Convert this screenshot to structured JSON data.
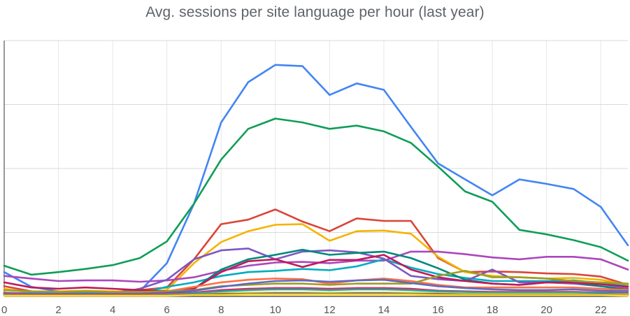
{
  "chart_data": {
    "type": "line",
    "title": "Avg. sessions per site language per hour (last year)",
    "xlabel": "",
    "ylabel": "",
    "x": [
      0,
      1,
      2,
      3,
      4,
      5,
      6,
      7,
      8,
      9,
      10,
      11,
      12,
      13,
      14,
      15,
      16,
      17,
      18,
      19,
      20,
      21,
      22,
      23
    ],
    "x_ticks": [
      "0",
      "2",
      "4",
      "6",
      "8",
      "10",
      "12",
      "14",
      "16",
      "18",
      "20",
      "22"
    ],
    "xlim": [
      0,
      23
    ],
    "ylim": [
      0,
      400
    ],
    "y_gridlines": [
      0,
      100,
      200,
      300,
      400
    ],
    "grid": true,
    "legend": "none",
    "series": [
      {
        "color": "#4285f4",
        "values": [
          38,
          15,
          8,
          7,
          6,
          8,
          52,
          145,
          272,
          335,
          362,
          360,
          315,
          333,
          323,
          265,
          208,
          183,
          158,
          183,
          176,
          168,
          140,
          80
        ]
      },
      {
        "color": "#0f9d58",
        "values": [
          48,
          34,
          38,
          43,
          49,
          60,
          86,
          145,
          214,
          262,
          278,
          272,
          262,
          267,
          258,
          240,
          203,
          164,
          148,
          104,
          97,
          88,
          77,
          56
        ]
      },
      {
        "color": "#db4437",
        "values": [
          16,
          8,
          7,
          8,
          7,
          10,
          14,
          58,
          113,
          120,
          136,
          117,
          102,
          122,
          118,
          118,
          60,
          38,
          39,
          38,
          36,
          35,
          31,
          18
        ]
      },
      {
        "color": "#f4b400",
        "values": [
          12,
          6,
          8,
          9,
          8,
          6,
          10,
          52,
          85,
          102,
          112,
          113,
          87,
          102,
          103,
          98,
          62,
          38,
          32,
          30,
          28,
          29,
          26,
          18
        ]
      },
      {
        "color": "#ab47bc",
        "values": [
          32,
          28,
          24,
          25,
          25,
          23,
          25,
          30,
          40,
          48,
          53,
          54,
          52,
          56,
          56,
          70,
          70,
          66,
          61,
          58,
          62,
          62,
          58,
          42
        ]
      },
      {
        "color": "#00acc1",
        "values": [
          6,
          5,
          5,
          5,
          5,
          5,
          15,
          22,
          32,
          38,
          40,
          43,
          41,
          47,
          58,
          45,
          35,
          29,
          24,
          24,
          24,
          25,
          21,
          16
        ]
      },
      {
        "color": "#7e57c2",
        "values": [
          6,
          4,
          4,
          4,
          4,
          12,
          26,
          58,
          72,
          75,
          58,
          70,
          72,
          69,
          59,
          32,
          27,
          24,
          42,
          22,
          22,
          20,
          16,
          12
        ]
      },
      {
        "color": "#00897b",
        "values": [
          4,
          3,
          3,
          3,
          3,
          4,
          8,
          12,
          42,
          58,
          65,
          73,
          65,
          68,
          70,
          60,
          44,
          26,
          20,
          18,
          22,
          22,
          16,
          10
        ]
      },
      {
        "color": "#c2185b",
        "values": [
          22,
          14,
          12,
          14,
          12,
          10,
          8,
          12,
          38,
          55,
          58,
          46,
          57,
          57,
          65,
          42,
          30,
          24,
          20,
          18,
          22,
          22,
          19,
          15
        ]
      },
      {
        "color": "#ff7043",
        "values": [
          6,
          4,
          4,
          4,
          4,
          4,
          8,
          15,
          22,
          26,
          28,
          27,
          20,
          25,
          28,
          24,
          18,
          14,
          14,
          14,
          14,
          14,
          12,
          10
        ]
      },
      {
        "color": "#9e9d24",
        "values": [
          10,
          8,
          7,
          8,
          7,
          7,
          8,
          10,
          16,
          18,
          20,
          20,
          18,
          20,
          20,
          20,
          32,
          40,
          30,
          30,
          28,
          24,
          22,
          20
        ]
      },
      {
        "color": "#5c6bc0",
        "values": [
          5,
          4,
          4,
          4,
          4,
          4,
          6,
          9,
          15,
          20,
          24,
          25,
          23,
          25,
          26,
          21,
          16,
          13,
          11,
          10,
          10,
          11,
          9,
          8
        ]
      },
      {
        "color": "#e91e63",
        "values": [
          4,
          3,
          3,
          3,
          3,
          3,
          4,
          6,
          10,
          12,
          13,
          13,
          12,
          13,
          13,
          12,
          9,
          8,
          7,
          7,
          7,
          7,
          6,
          5
        ]
      },
      {
        "color": "#26a69a",
        "values": [
          3,
          2,
          2,
          2,
          2,
          2,
          3,
          5,
          8,
          10,
          11,
          11,
          10,
          11,
          11,
          10,
          8,
          7,
          6,
          6,
          6,
          6,
          5,
          4
        ]
      },
      {
        "color": "#cddc39",
        "values": [
          2,
          2,
          2,
          2,
          2,
          2,
          2,
          3,
          5,
          6,
          6,
          6,
          6,
          6,
          6,
          6,
          5,
          4,
          4,
          4,
          4,
          4,
          3,
          3
        ]
      },
      {
        "color": "#8d6e63",
        "values": [
          2,
          2,
          2,
          2,
          2,
          2,
          2,
          3,
          4,
          4,
          5,
          5,
          4,
          5,
          5,
          4,
          4,
          3,
          3,
          3,
          3,
          3,
          3,
          2
        ]
      },
      {
        "color": "#fdd835",
        "values": [
          1,
          1,
          1,
          1,
          1,
          1,
          1,
          2,
          2,
          3,
          3,
          3,
          3,
          3,
          3,
          3,
          2,
          2,
          2,
          2,
          2,
          2,
          2,
          1
        ]
      }
    ]
  }
}
